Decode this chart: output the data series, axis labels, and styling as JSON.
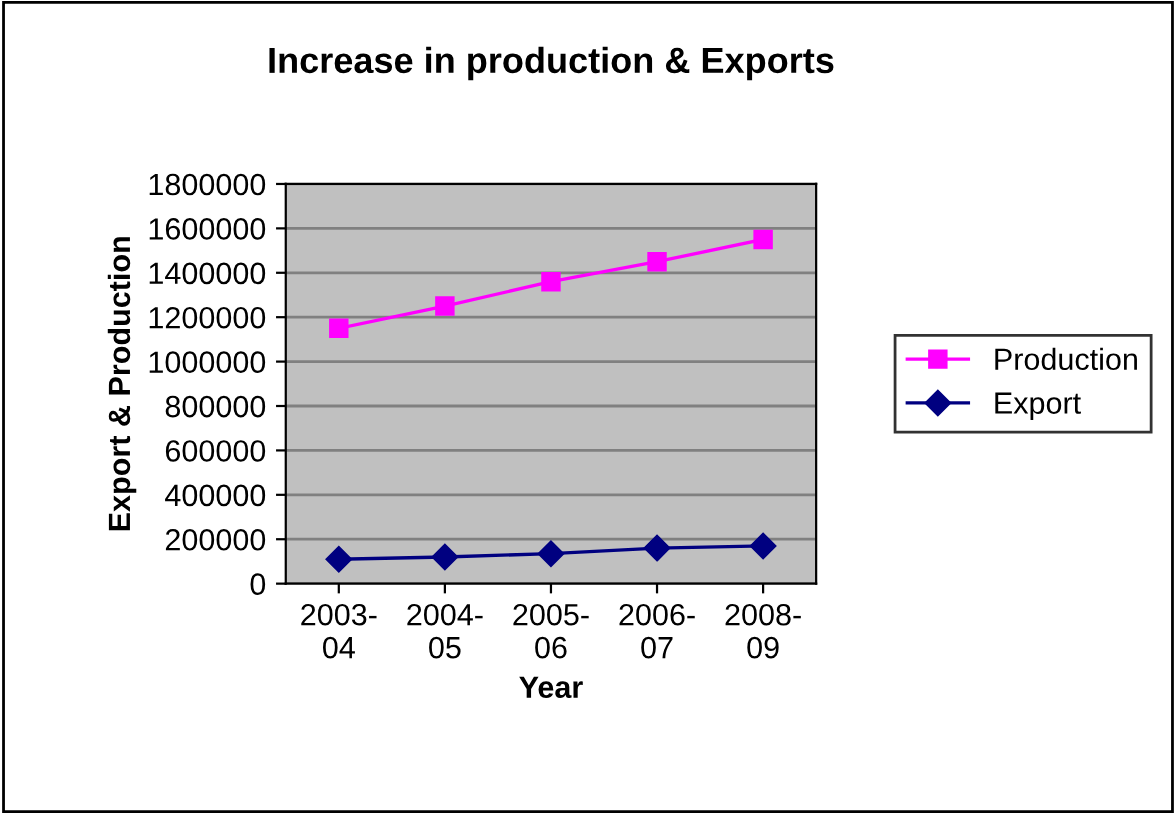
{
  "chart_data": {
    "type": "line",
    "title": "Increase in production & Exports",
    "xlabel": "Year",
    "ylabel": "Export & Production",
    "categories": [
      "2003-\n04",
      "2004-\n05",
      "2005-\n06",
      "2006-\n07",
      "2008-\n09"
    ],
    "series": [
      {
        "name": "Production",
        "color": "#ff00ff",
        "marker": "square",
        "values": [
          1150000,
          1250000,
          1360000,
          1450000,
          1550000
        ]
      },
      {
        "name": "Export",
        "color": "#000080",
        "marker": "diamond",
        "values": [
          110000,
          120000,
          135000,
          160000,
          170000
        ]
      }
    ],
    "ylim": [
      0,
      1800000
    ],
    "yticks": [
      0,
      200000,
      400000,
      600000,
      800000,
      1000000,
      1200000,
      1400000,
      1600000,
      1800000
    ],
    "grid": "y",
    "legend": "right",
    "line_style": "solid"
  }
}
